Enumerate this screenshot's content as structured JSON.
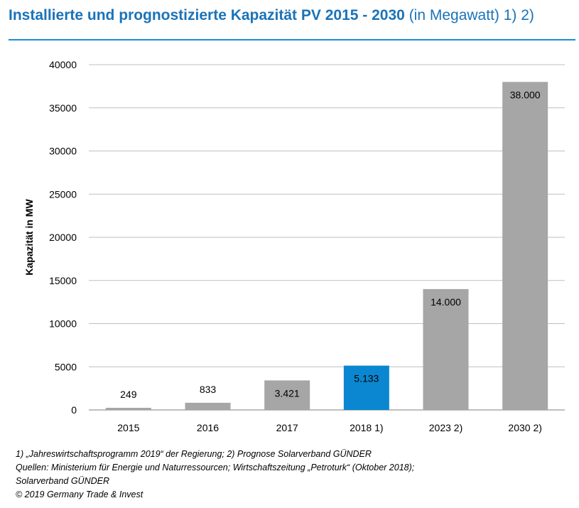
{
  "header": {
    "title_bold": "Installierte und prognostizierte Kapazität PV 2015 - 2030",
    "title_normal": "(in Megawatt) 1) 2)"
  },
  "chart_data": {
    "type": "bar",
    "title": "Installierte und prognostizierte Kapazität PV 2015 - 2030 (in Megawatt) 1) 2)",
    "categories": [
      "2015",
      "2016",
      "2017",
      "2018 1)",
      "2023 2)",
      "2030 2)"
    ],
    "values": [
      249,
      833,
      3421,
      5133,
      14000,
      38000
    ],
    "data_labels": [
      "249",
      "833",
      "3.421",
      "5.133",
      "14.000",
      "38.000"
    ],
    "colors": [
      "#a6a6a6",
      "#a6a6a6",
      "#a6a6a6",
      "#0a87d0",
      "#a6a6a6",
      "#a6a6a6"
    ],
    "ylabel": "Kapazität in MW",
    "xlabel": "",
    "ylim": [
      0,
      40000
    ],
    "yticks": [
      0,
      5000,
      10000,
      15000,
      20000,
      25000,
      30000,
      35000,
      40000
    ],
    "grid": true
  },
  "footnotes": {
    "line1": "1) „Jahreswirtschaftsprogramm 2019“ der Regierung; 2) Prognose Solarverband GÜNDER",
    "line2": "Quellen: Ministerium für Energie und Naturressourcen; Wirtschaftszeitung „Petroturk“ (Oktober 2018);",
    "line3": "Solarverband GÜNDER",
    "line4": "© 2019  Germany Trade & Invest"
  }
}
